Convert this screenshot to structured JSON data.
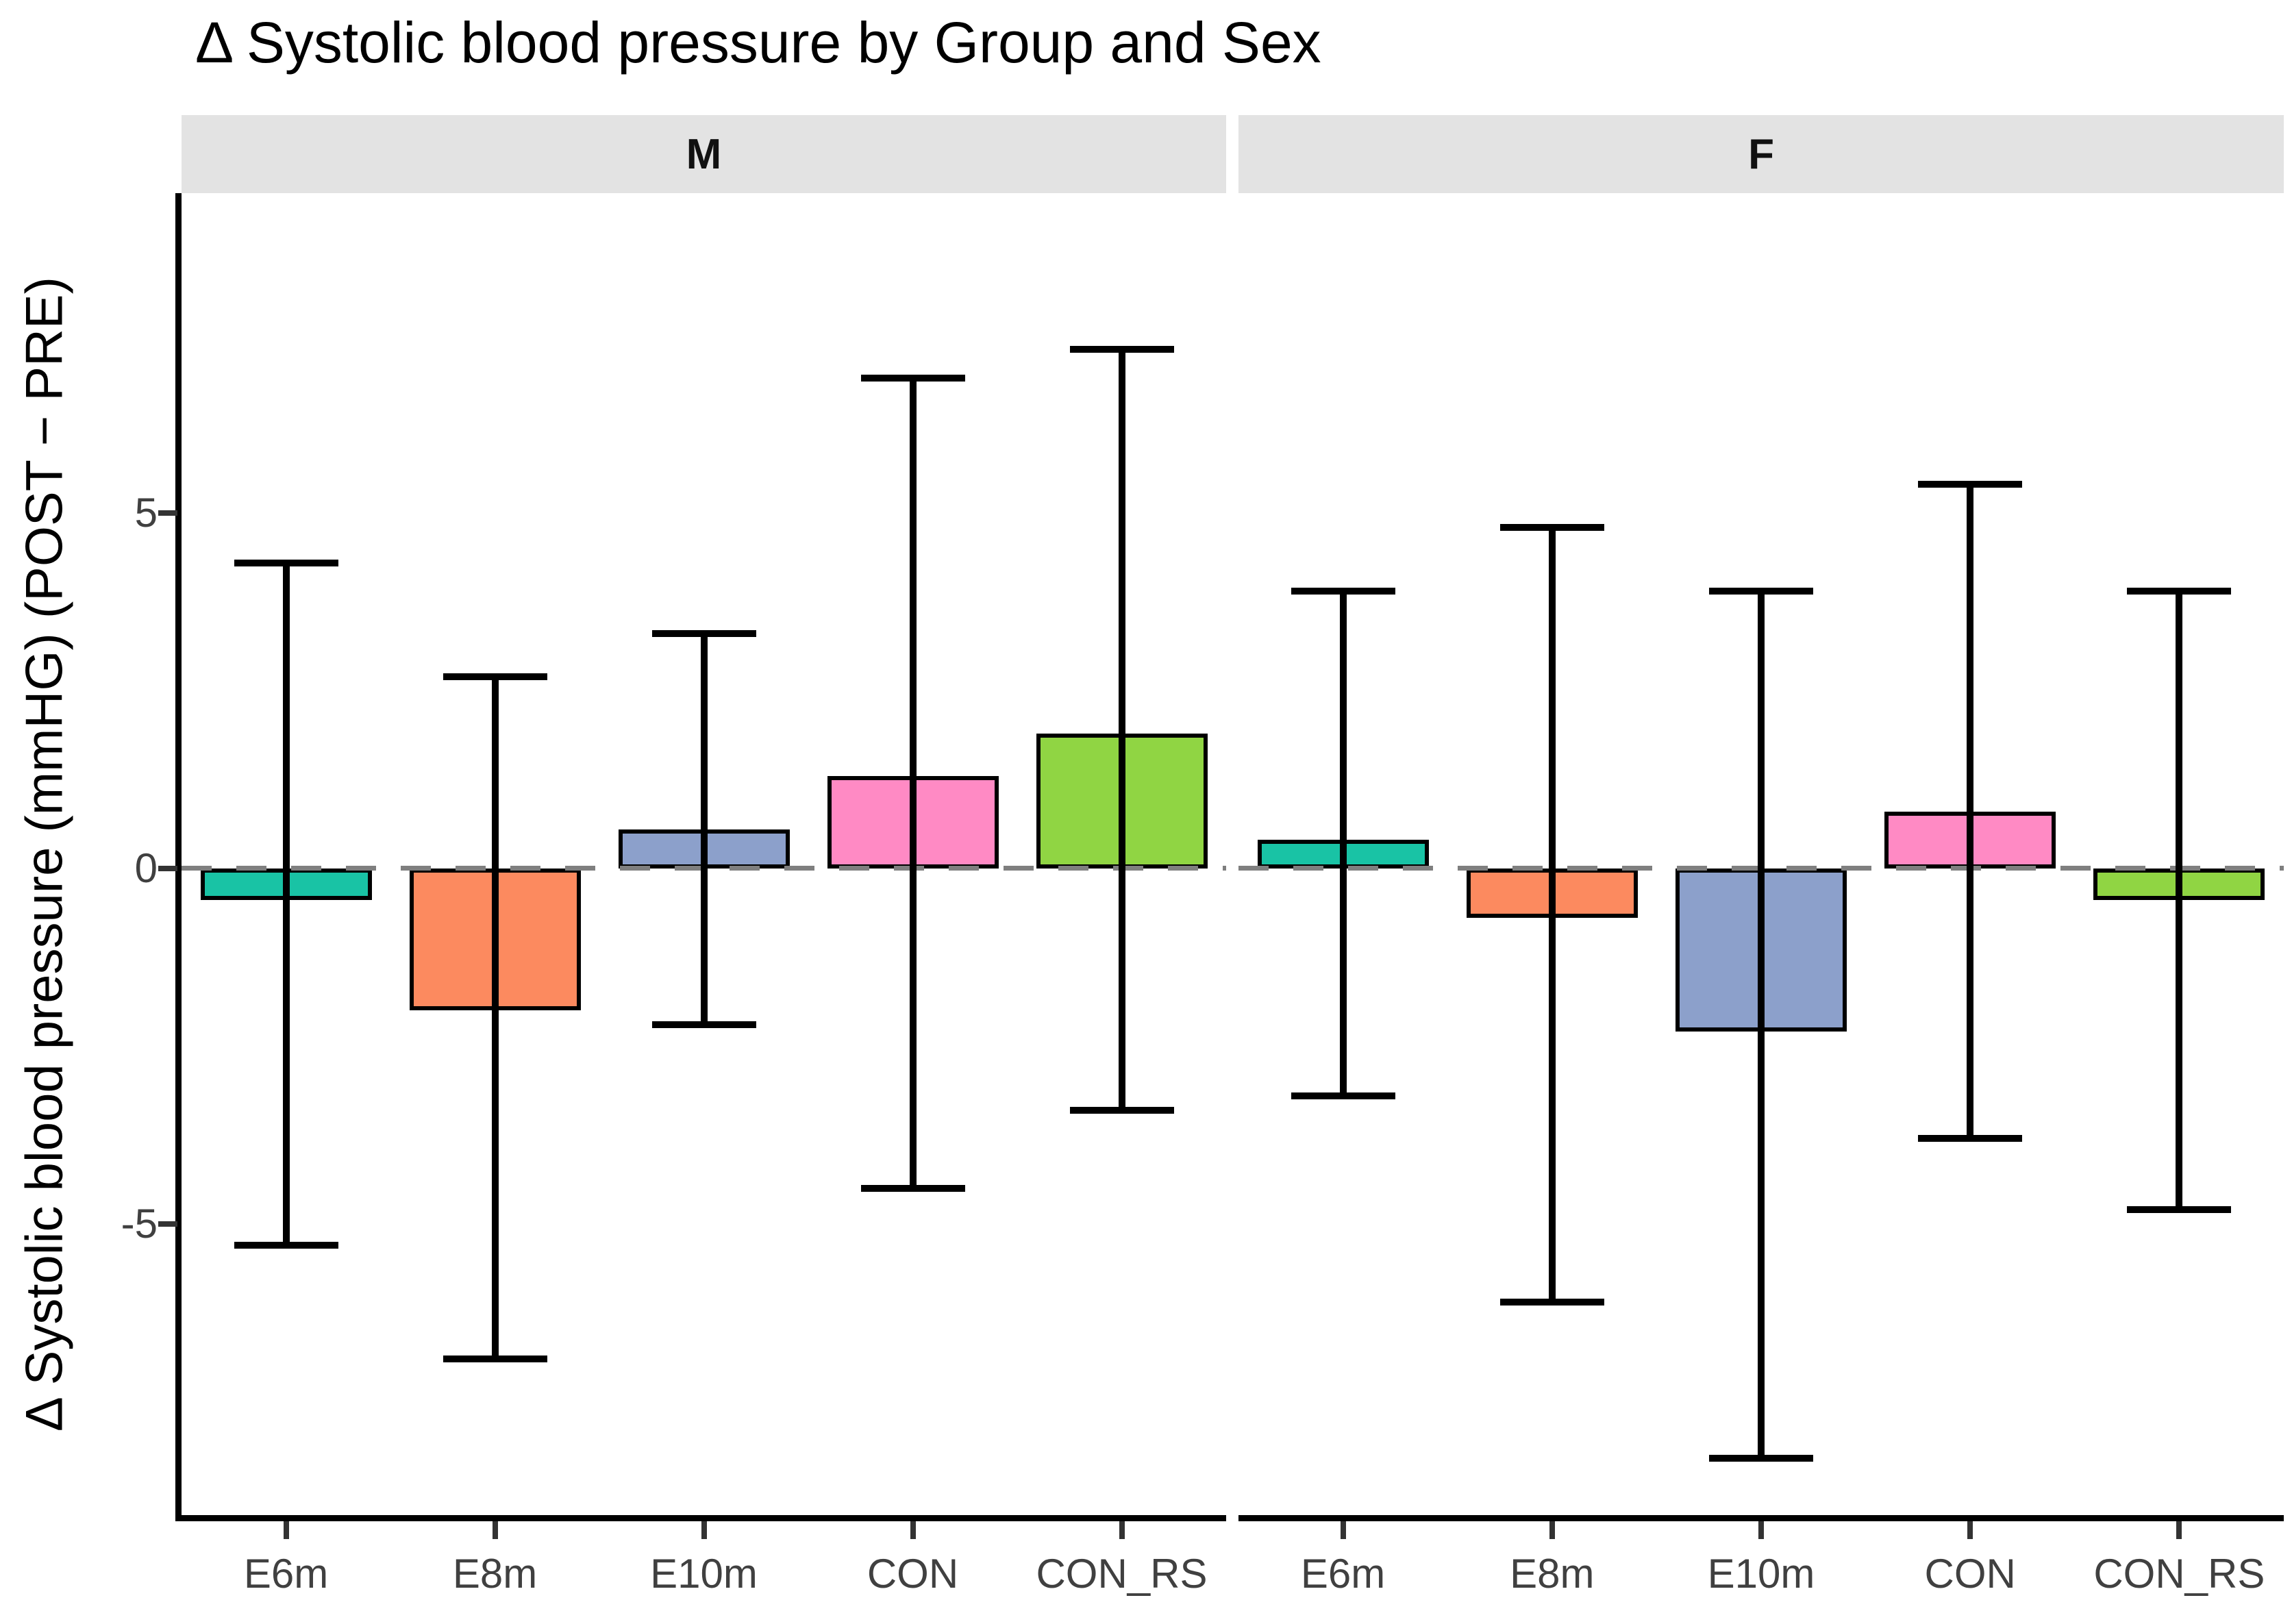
{
  "page": {
    "background": "#FFFFFF"
  },
  "chart_data": {
    "type": "bar",
    "title": "Δ Systolic blood pressure by Group and Sex",
    "xlabel": "",
    "ylabel": "Δ Systolic blood pressure (mmHG) (POST − PRE)",
    "units": "mmHG",
    "grid": false,
    "legend": "none",
    "zero_reference_line": 0,
    "ylim": [
      -9.1,
      9.5
    ],
    "y_ticks": [
      {
        "value": 5,
        "label": "5"
      },
      {
        "value": 0,
        "label": "0"
      },
      {
        "value": -5,
        "label": "-5"
      }
    ],
    "categories": [
      "E6m",
      "E8m",
      "E10m",
      "CON",
      "CON_RS"
    ],
    "colors": {
      "E6m": "#19C3A5",
      "E8m": "#FC8A5F",
      "E10m": "#8CA0CB",
      "CON": "#FF8AC4",
      "CON_RS": "#90D543"
    },
    "facets": [
      {
        "label": "M",
        "bars": [
          {
            "group": "E6m",
            "mean": -0.45,
            "lo": -5.3,
            "hi": 4.3
          },
          {
            "group": "E8m",
            "mean": -2.0,
            "lo": -6.9,
            "hi": 2.7
          },
          {
            "group": "E10m",
            "mean": 0.55,
            "lo": -2.2,
            "hi": 3.3
          },
          {
            "group": "CON",
            "mean": 1.3,
            "lo": -4.5,
            "hi": 6.9
          },
          {
            "group": "CON_RS",
            "mean": 1.9,
            "lo": -3.4,
            "hi": 7.3
          }
        ]
      },
      {
        "label": "F",
        "bars": [
          {
            "group": "E6m",
            "mean": 0.4,
            "lo": -3.2,
            "hi": 3.9
          },
          {
            "group": "E8m",
            "mean": -0.7,
            "lo": -6.1,
            "hi": 4.8
          },
          {
            "group": "E10m",
            "mean": -2.3,
            "lo": -8.3,
            "hi": 3.9
          },
          {
            "group": "CON",
            "mean": 0.8,
            "lo": -3.8,
            "hi": 5.4
          },
          {
            "group": "CON_RS",
            "mean": -0.45,
            "lo": -4.8,
            "hi": 3.9
          }
        ]
      }
    ],
    "style": {
      "strip_bg": "#E3E3E3",
      "strip_text": "#111111",
      "axis_line": "#000000",
      "tick_color": "#333333",
      "tick_label_color": "#404040",
      "bar_border_color": "#000000",
      "error_bar_color": "#000000",
      "zero_line_color": "#7F7F7F",
      "title_color": "#000000",
      "plot_bg": "#FFFFFF"
    }
  }
}
